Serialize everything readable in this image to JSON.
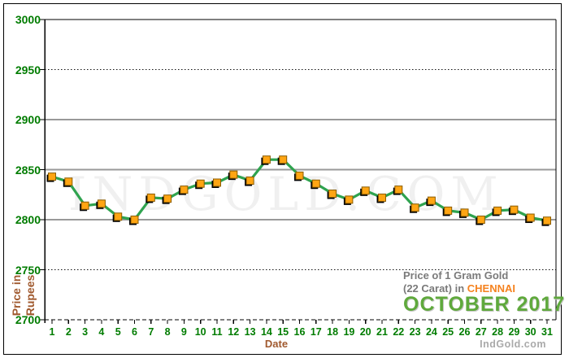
{
  "watermark": {
    "text": "INDGOLD.COM"
  },
  "credit": "IndGold.com",
  "axes": {
    "y_title_line1": "Price in",
    "y_title_line2": "Rupees",
    "x_title": "Date"
  },
  "annotation": {
    "line1": "Price of 1 Gram Gold",
    "line2_prefix": "(22 Carat) in ",
    "city": "CHENNAI",
    "period": "OCTOBER 2017"
  },
  "colors": {
    "tick_green": "#007C00",
    "title_brown": "#A0592E",
    "line_green": "#2FA34F",
    "marker_orange": "#FFA513",
    "marker_border": "#8A5C00",
    "marker_shadow": "#000000",
    "grid_gray": "#999999",
    "grid_dark": "#111111",
    "annotation_gray": "#7A7A7A",
    "city_orange": "#F5821F",
    "period_green": "#5FA93C",
    "credit_gray": "#AAAAAA"
  },
  "chart_data": {
    "type": "line",
    "title": "Price of 1 Gram Gold (22 Carat) in CHENNAI, October 2017",
    "xlabel": "Date",
    "ylabel": "Price in Rupees",
    "x": [
      1,
      2,
      3,
      4,
      5,
      6,
      7,
      8,
      9,
      10,
      11,
      12,
      13,
      14,
      15,
      16,
      17,
      18,
      19,
      20,
      21,
      22,
      23,
      24,
      25,
      26,
      27,
      28,
      29,
      30,
      31
    ],
    "values": [
      2843,
      2838,
      2814,
      2816,
      2803,
      2800,
      2822,
      2821,
      2830,
      2836,
      2837,
      2845,
      2839,
      2860,
      2860,
      2844,
      2836,
      2826,
      2820,
      2829,
      2822,
      2830,
      2812,
      2819,
      2809,
      2807,
      2800,
      2809,
      2810,
      2802,
      2799
    ],
    "ylim": [
      2700,
      3000
    ],
    "yticks": [
      3000,
      2950,
      2900,
      2850,
      2800,
      2750,
      2700
    ],
    "grid": "horizontal",
    "legend": "none"
  }
}
